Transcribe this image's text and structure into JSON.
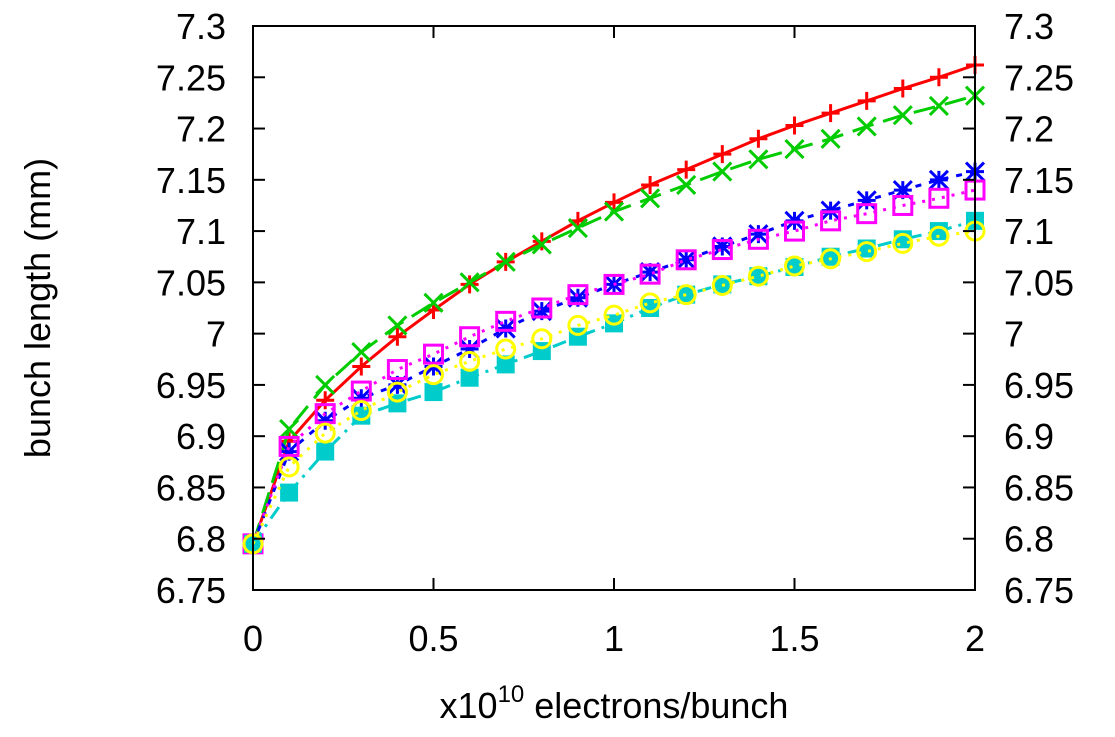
{
  "chart_data": {
    "type": "line",
    "title": "",
    "xlabel": {
      "prefix": "x10",
      "exponent": "10",
      "suffix": " electrons/bunch"
    },
    "ylabel": "bunch length (mm)",
    "xlim": [
      0,
      2
    ],
    "ylim": [
      6.75,
      7.3
    ],
    "x_ticks": [
      "0",
      "0.5",
      "1",
      "1.5",
      "2"
    ],
    "y_ticks": [
      "6.75",
      "6.8",
      "6.85",
      "6.9",
      "6.95",
      "7",
      "7.05",
      "7.1",
      "7.15",
      "7.2",
      "7.25",
      "7.3"
    ],
    "y2_ticks": [
      "6.75",
      "6.8",
      "6.85",
      "6.9",
      "6.95",
      "7",
      "7.05",
      "7.1",
      "7.15",
      "7.2",
      "7.25",
      "7.3"
    ],
    "grid": false,
    "legend": "none",
    "x": [
      0,
      0.1,
      0.2,
      0.3,
      0.4,
      0.5,
      0.6,
      0.7,
      0.8,
      0.9,
      1.0,
      1.1,
      1.2,
      1.3,
      1.4,
      1.5,
      1.6,
      1.7,
      1.8,
      1.9,
      2.0
    ],
    "series": [
      {
        "color": "#ff0000",
        "marker": "plus",
        "dash": "",
        "values": [
          6.795,
          6.895,
          6.935,
          6.968,
          6.997,
          7.023,
          7.048,
          7.07,
          7.09,
          7.11,
          7.128,
          7.145,
          7.16,
          7.175,
          7.19,
          7.203,
          7.215,
          7.227,
          7.239,
          7.25,
          7.262
        ]
      },
      {
        "color": "#00cc00",
        "marker": "cross",
        "dash": "22,10",
        "values": [
          6.795,
          6.907,
          6.95,
          6.982,
          7.008,
          7.03,
          7.05,
          7.07,
          7.087,
          7.103,
          7.119,
          7.132,
          7.145,
          7.158,
          7.17,
          7.18,
          7.19,
          7.202,
          7.213,
          7.222,
          7.232
        ]
      },
      {
        "color": "#0000ff",
        "marker": "star",
        "dash": "6,8",
        "values": [
          6.795,
          6.885,
          6.915,
          6.937,
          6.95,
          6.968,
          6.985,
          7.005,
          7.022,
          7.035,
          7.048,
          7.06,
          7.072,
          7.085,
          7.097,
          7.11,
          7.12,
          7.13,
          7.14,
          7.15,
          7.158
        ]
      },
      {
        "color": "#ff00ff",
        "marker": "square",
        "dash": "3,7",
        "values": [
          6.795,
          6.89,
          6.922,
          6.944,
          6.965,
          6.98,
          6.997,
          7.012,
          7.025,
          7.038,
          7.048,
          7.058,
          7.072,
          7.082,
          7.092,
          7.1,
          7.11,
          7.117,
          7.125,
          7.132,
          7.14
        ]
      },
      {
        "color": "#00cccc",
        "marker": "filled-square",
        "dash": "14,7,3,7",
        "values": [
          6.795,
          6.845,
          6.885,
          6.92,
          6.932,
          6.943,
          6.957,
          6.97,
          6.983,
          6.997,
          7.01,
          7.025,
          7.038,
          7.048,
          7.056,
          7.065,
          7.075,
          7.083,
          7.092,
          7.1,
          7.11
        ]
      },
      {
        "color": "#ffff00",
        "marker": "circle",
        "dash": "3,7",
        "values": [
          6.795,
          6.87,
          6.903,
          6.925,
          6.943,
          6.96,
          6.973,
          6.985,
          6.995,
          7.008,
          7.018,
          7.03,
          7.038,
          7.047,
          7.056,
          7.066,
          7.073,
          7.08,
          7.088,
          7.095,
          7.1
        ]
      }
    ]
  }
}
